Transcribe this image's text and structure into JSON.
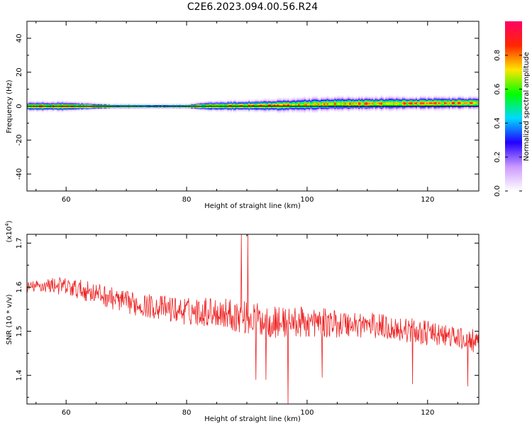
{
  "title": "C2E6.2023.094.00.56.R24",
  "chart_data": [
    {
      "type": "heatmap",
      "xlabel": "Height of straight line (km)",
      "ylabel": "Frequency (Hz)",
      "xlim": [
        53.5,
        128.5
      ],
      "ylim": [
        -50,
        50
      ],
      "x_ticks": [
        60,
        80,
        100,
        120
      ],
      "x_tick_labels": [
        "60",
        "80",
        "100",
        "120"
      ],
      "y_ticks": [
        -40,
        -20,
        0,
        20,
        40
      ],
      "y_tick_labels": [
        "-40",
        "-20",
        "0",
        "20",
        "40"
      ],
      "signal_band": {
        "center_frequency": [
          [
            53.5,
            0
          ],
          [
            80,
            0
          ],
          [
            95,
            0.5
          ],
          [
            105,
            1.5
          ],
          [
            128.5,
            2
          ]
        ],
        "half_width": [
          [
            53.5,
            3.5
          ],
          [
            60,
            3.5
          ],
          [
            68,
            1.5
          ],
          [
            80,
            1.5
          ],
          [
            84,
            3.5
          ],
          [
            100,
            5
          ],
          [
            128.5,
            4.5
          ]
        ],
        "peak_amplitude": 0.9
      },
      "colorbar": {
        "label": "Normalized spectral amplitude",
        "range": [
          0,
          1
        ],
        "ticks": [
          0.0,
          0.2,
          0.4,
          0.6,
          0.8
        ],
        "tick_labels": [
          "0.0",
          "0.2",
          "0.4",
          "0.6",
          "0.8"
        ],
        "colors": [
          "#ffffff",
          "#cc99ff",
          "#2200ff",
          "#00d9ff",
          "#00ff00",
          "#ffe500",
          "#ff2600",
          "#ff0066"
        ]
      }
    },
    {
      "type": "line",
      "xlabel": "Height of straight line (km)",
      "ylabel": "SNR (10 * v/v)",
      "multiplier": "(x10",
      "multiplier_exp": "4",
      "multiplier_close": ")",
      "xlim": [
        53.5,
        128.5
      ],
      "ylim": [
        13.35,
        17.2
      ],
      "x_ticks": [
        60,
        80,
        100,
        120
      ],
      "x_tick_labels": [
        "60",
        "80",
        "100",
        "120"
      ],
      "y_ticks": [
        14,
        15,
        16,
        17
      ],
      "y_tick_labels": [
        "1.4",
        "1.5",
        "1.6",
        "1.7"
      ],
      "series": [
        {
          "color": "#ee2222",
          "trend": [
            [
              53.5,
              16.0
            ],
            [
              58,
              16.05
            ],
            [
              64,
              15.9
            ],
            [
              70,
              15.65
            ],
            [
              80,
              15.45
            ],
            [
              85,
              15.45
            ],
            [
              90,
              15.3
            ],
            [
              95,
              15.2
            ],
            [
              100,
              15.2
            ],
            [
              110,
              15.15
            ],
            [
              118,
              15.0
            ],
            [
              125,
              14.85
            ],
            [
              128.5,
              14.7
            ]
          ],
          "noise": [
            [
              53.5,
              0.12
            ],
            [
              60,
              0.22
            ],
            [
              75,
              0.28
            ],
            [
              90,
              0.38
            ],
            [
              100,
              0.35
            ],
            [
              110,
              0.3
            ],
            [
              120,
              0.28
            ],
            [
              128.5,
              0.22
            ]
          ],
          "spikes": [
            [
              89.1,
              17.2
            ],
            [
              90.2,
              17.2
            ],
            [
              91.5,
              13.9
            ],
            [
              93.2,
              13.9
            ],
            [
              96.8,
              13.35
            ],
            [
              102.5,
              13.95
            ],
            [
              117.5,
              13.8
            ],
            [
              126.7,
              13.75
            ],
            [
              127.5,
              15.05
            ]
          ]
        }
      ]
    }
  ]
}
